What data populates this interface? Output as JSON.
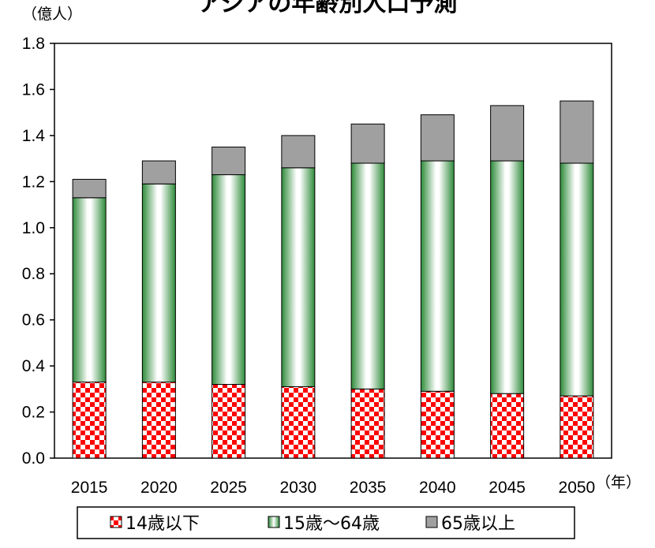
{
  "chart_data": {
    "type": "bar",
    "stacked": true,
    "title": "アジアの年齢別人口予測",
    "y_unit": "（億人）",
    "x_unit": "（年）",
    "categories": [
      "2015",
      "2020",
      "2025",
      "2030",
      "2035",
      "2040",
      "2045",
      "2050"
    ],
    "y_ticks": [
      "0.0",
      "0.2",
      "0.4",
      "0.6",
      "0.8",
      "1.0",
      "1.2",
      "1.4",
      "1.6",
      "1.8"
    ],
    "ylim": [
      0,
      1.8
    ],
    "grid": false,
    "legend_position": "bottom",
    "series": [
      {
        "name": "14歳以下",
        "values": [
          0.33,
          0.33,
          0.32,
          0.31,
          0.3,
          0.29,
          0.28,
          0.27
        ],
        "fill": "checker",
        "colors": [
          "#ff0000",
          "#ffffff"
        ]
      },
      {
        "name": "15歳～64歳",
        "values": [
          0.8,
          0.86,
          0.91,
          0.95,
          0.98,
          1.0,
          1.01,
          1.01
        ],
        "fill": "gradient",
        "colors": [
          "#2e8b3a",
          "#ffffff"
        ]
      },
      {
        "name": "65歳以上",
        "values": [
          0.08,
          0.1,
          0.12,
          0.14,
          0.17,
          0.2,
          0.24,
          0.27
        ],
        "fill": "solid",
        "colors": [
          "#a0a0a0"
        ]
      }
    ]
  }
}
